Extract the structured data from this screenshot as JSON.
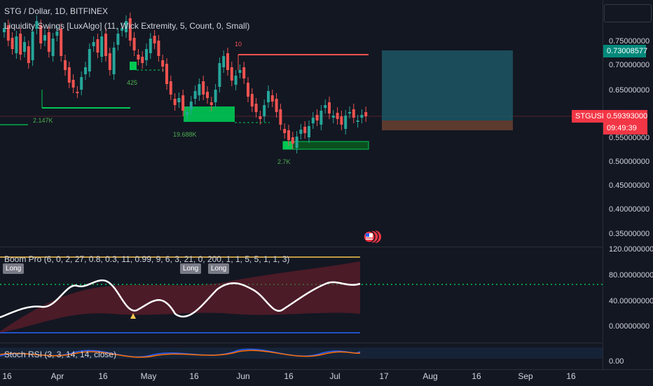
{
  "header": {
    "title": "STG / Dollar, 1D, BITFINEX",
    "indicator": "Liquidity Swings [LuxAlgo] (11, Wick Extremity, 5, Count, 0, Small)"
  },
  "main_axis": {
    "ticks": [
      "0.75000000",
      "0.70000000",
      "0.65000000",
      "0.55000000",
      "0.50000000",
      "0.45000000",
      "0.40000000",
      "0.35000000"
    ],
    "target_price": "0.73008577",
    "symbol": "STGUSD",
    "last_price": "0.59393000",
    "countdown": "09:49:39"
  },
  "osc": {
    "title": "Boom Pro (6, 0, 2, 27, 0.8, 0.3, 11, 0.99, 9, 6, 3, 21, 0, 200, 1, 1, 5, 5, 1, 1, 3)",
    "ticks": [
      "120.00000000",
      "80.00000000",
      "40.00000000",
      "0.00000000"
    ],
    "long_label": "Long"
  },
  "rsi": {
    "title": "Stoch RSI (3, 3, 14, 14, close)",
    "tick": "0.00"
  },
  "volume_labels": [
    "2.147K",
    "425",
    "19.688K",
    "2.7K",
    "10"
  ],
  "x_axis": [
    "16",
    "Apr",
    "16",
    "May",
    "16",
    "Jun",
    "16",
    "Jul",
    "17",
    "Aug",
    "16",
    "Sep",
    "16"
  ],
  "colors": {
    "bg": "#131722",
    "up": "#26a69a",
    "down": "#ef5350",
    "zone": "#00c853",
    "target": "#1e5f6e",
    "stop": "#5d3a2e"
  }
}
